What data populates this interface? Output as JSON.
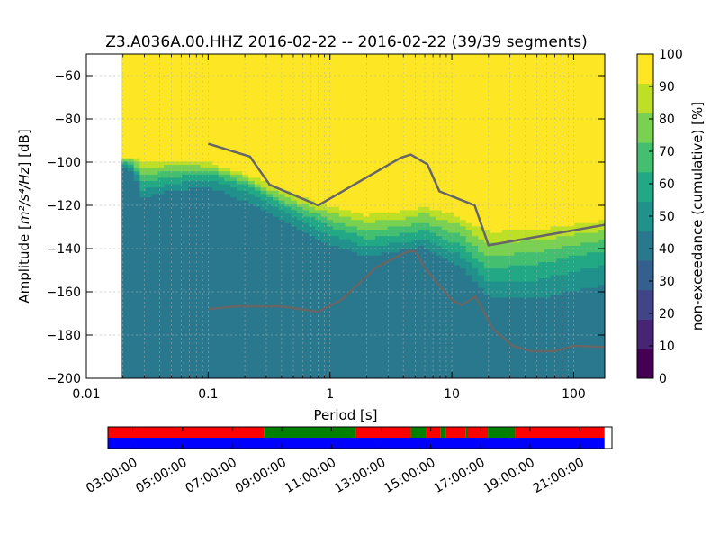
{
  "chart_data": {
    "type": "heatmap",
    "title": "Z3.A036A.00.HHZ   2016-02-22 -- 2016-02-22  (39/39 segments)",
    "xlabel": "Period [s]",
    "ylabel_prefix": "Amplitude [",
    "ylabel_math": "m²/s⁴/Hz",
    "ylabel_suffix": "] [dB]",
    "x_scale": "log",
    "xlim": [
      0.01,
      180
    ],
    "ylim": [
      -200,
      -50
    ],
    "x_ticks": [
      {
        "value": 0.01,
        "label": "0.01"
      },
      {
        "value": 0.1,
        "label": "0.1"
      },
      {
        "value": 1,
        "label": "1"
      },
      {
        "value": 10,
        "label": "10"
      },
      {
        "value": 100,
        "label": "100"
      }
    ],
    "y_ticks": [
      {
        "value": -60,
        "label": "−60"
      },
      {
        "value": -80,
        "label": "−80"
      },
      {
        "value": -100,
        "label": "−100"
      },
      {
        "value": -120,
        "label": "−120"
      },
      {
        "value": -140,
        "label": "−140"
      },
      {
        "value": -160,
        "label": "−160"
      },
      {
        "value": -180,
        "label": "−180"
      },
      {
        "value": -200,
        "label": "−200"
      }
    ],
    "grid": true,
    "data_start_period": 0.0195,
    "colorbar": {
      "label": "non-exceedance (cumulative) [%]",
      "range": [
        0,
        100
      ],
      "ticks": [
        {
          "value": 0,
          "label": "0"
        },
        {
          "value": 10,
          "label": "10"
        },
        {
          "value": 20,
          "label": "20"
        },
        {
          "value": 30,
          "label": "30"
        },
        {
          "value": 40,
          "label": "40"
        },
        {
          "value": 50,
          "label": "50"
        },
        {
          "value": 60,
          "label": "60"
        },
        {
          "value": 70,
          "label": "70"
        },
        {
          "value": 80,
          "label": "80"
        },
        {
          "value": 90,
          "label": "90"
        },
        {
          "value": 100,
          "label": "100"
        }
      ],
      "colors": [
        "#440154",
        "#482475",
        "#414487",
        "#355f8d",
        "#2a788e",
        "#21918c",
        "#22a884",
        "#44bf70",
        "#7ad151",
        "#bddf26",
        "#fde725"
      ]
    },
    "density_profile": {
      "periods": [
        0.0195,
        0.021,
        0.025,
        0.028,
        0.05,
        0.1,
        0.2,
        0.3,
        0.5,
        1,
        2,
        4,
        6,
        8,
        12,
        17,
        20,
        50,
        100,
        180
      ],
      "level_40": [
        -101,
        -104,
        -106,
        -118,
        -115,
        -113,
        -120,
        -125,
        -132,
        -140,
        -146,
        -142,
        -141,
        -146,
        -150,
        -160,
        -165,
        -167,
        -164,
        -161
      ],
      "level_60": [
        -99,
        -101,
        -102,
        -111,
        -108,
        -106,
        -111,
        -116,
        -123,
        -131,
        -137,
        -135,
        -133,
        -136,
        -141,
        -149,
        -152,
        -150,
        -146,
        -143
      ],
      "level_90": [
        -98,
        -98,
        -98,
        -101,
        -100,
        -101,
        -106,
        -111,
        -116,
        -122,
        -126,
        -124,
        -122,
        -124,
        -127,
        -132,
        -134,
        -133,
        -131,
        -129
      ],
      "level_100": [
        -97,
        -97,
        -97,
        -99,
        -98,
        -99,
        -104,
        -108,
        -113,
        -119,
        -123,
        -121,
        -119,
        -121,
        -124,
        -128,
        -130,
        -129,
        -127,
        -125
      ]
    },
    "noise_models": [
      {
        "label": "high noise model",
        "points": [
          [
            0.1,
            -91.5
          ],
          [
            0.22,
            -97.4
          ],
          [
            0.32,
            -110.5
          ],
          [
            0.8,
            -120
          ],
          [
            3.8,
            -98
          ],
          [
            4.6,
            -96.5
          ],
          [
            6.3,
            -101
          ],
          [
            7.9,
            -113.5
          ],
          [
            15.4,
            -120
          ],
          [
            20,
            -138.5
          ],
          [
            180,
            -129
          ]
        ]
      },
      {
        "label": "low noise model",
        "points": [
          [
            0.1,
            -168
          ],
          [
            0.17,
            -166.7
          ],
          [
            0.4,
            -166.7
          ],
          [
            0.8,
            -169.2
          ],
          [
            1.24,
            -163.7
          ],
          [
            2.4,
            -148.6
          ],
          [
            4.3,
            -141.5
          ],
          [
            5,
            -141.1
          ],
          [
            6,
            -149
          ],
          [
            10,
            -163.8
          ],
          [
            12,
            -166.2
          ],
          [
            15.6,
            -162.1
          ],
          [
            21.9,
            -177.5
          ],
          [
            31.6,
            -185
          ],
          [
            45,
            -187.5
          ],
          [
            70,
            -187.5
          ],
          [
            101,
            -185
          ],
          [
            180,
            -185.5
          ]
        ]
      }
    ],
    "noise_model_color": "#666666"
  },
  "time_axis": {
    "labels": [
      "03:00:00",
      "05:00:00",
      "07:00:00",
      "09:00:00",
      "11:00:00",
      "13:00:00",
      "15:00:00",
      "17:00:00",
      "19:00:00",
      "21:00:00"
    ],
    "start_hour": 2.0,
    "end_hour": 22.3,
    "top_track": [
      {
        "start": 2.0,
        "end": 8.3,
        "state": "red"
      },
      {
        "start": 8.3,
        "end": 12.0,
        "state": "green"
      },
      {
        "start": 12.0,
        "end": 14.2,
        "state": "red"
      },
      {
        "start": 14.2,
        "end": 14.8,
        "state": "green"
      },
      {
        "start": 14.8,
        "end": 15.4,
        "state": "red"
      },
      {
        "start": 15.4,
        "end": 15.6,
        "state": "green"
      },
      {
        "start": 15.6,
        "end": 16.4,
        "state": "red"
      },
      {
        "start": 16.4,
        "end": 16.5,
        "state": "green"
      },
      {
        "start": 16.5,
        "end": 17.3,
        "state": "red"
      },
      {
        "start": 17.3,
        "end": 18.4,
        "state": "green"
      },
      {
        "start": 18.4,
        "end": 22.0,
        "state": "red"
      }
    ],
    "bottom_track": [
      {
        "start": 2.0,
        "end": 22.0,
        "state": "blue"
      }
    ],
    "state_colors": {
      "red": "#ff0000",
      "green": "#008000",
      "blue": "#0000ff"
    }
  }
}
